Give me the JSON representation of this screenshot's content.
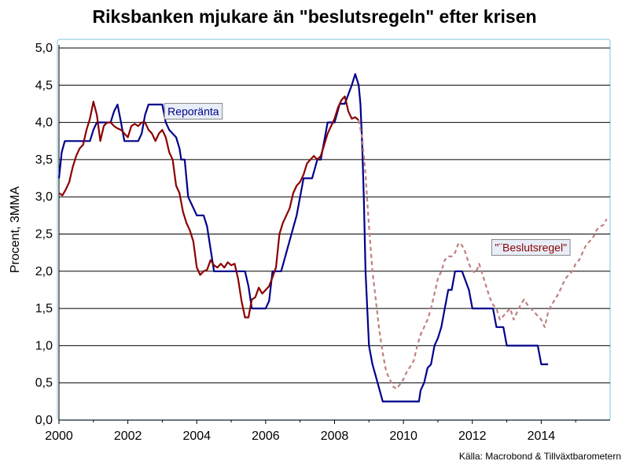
{
  "chart_data": {
    "type": "line",
    "title": "Riksbanken mjukare än \"beslutsregeln\" efter krisen",
    "ylabel": "Procent, 3MMA",
    "xlabel": "",
    "source": "Källa: Macrobond & Tillväxtbarometern",
    "xlim": [
      2000,
      2016
    ],
    "ylim": [
      0,
      5
    ],
    "grid": true,
    "x_ticks": [
      2000,
      2002,
      2004,
      2006,
      2008,
      2010,
      2012,
      2014
    ],
    "x_tick_labels": [
      "2000",
      "2002",
      "2004",
      "2006",
      "2008",
      "2010",
      "2012",
      "2014"
    ],
    "y_ticks": [
      0,
      0.5,
      1.0,
      1.5,
      2.0,
      2.5,
      3.0,
      3.5,
      4.0,
      4.5,
      5.0
    ],
    "y_tick_labels": [
      "0,0",
      "0,5",
      "1,0",
      "1,5",
      "2,0",
      "2,5",
      "3,0",
      "3,5",
      "4,0",
      "4,5",
      "5,0"
    ],
    "series": [
      {
        "name": "Reporänta",
        "color": "#00008B",
        "style": "solid",
        "x": [
          2000.0,
          2000.08,
          2000.17,
          2000.25,
          2000.5,
          2000.75,
          2000.9,
          2001.0,
          2001.1,
          2001.25,
          2001.5,
          2001.6,
          2001.7,
          2001.8,
          2001.9,
          2002.0,
          2002.3,
          2002.4,
          2002.5,
          2002.6,
          2002.9,
          2003.0,
          2003.1,
          2003.2,
          2003.4,
          2003.5,
          2003.55,
          2003.65,
          2003.75,
          2004.0,
          2004.1,
          2004.2,
          2004.3,
          2004.5,
          2005.0,
          2005.3,
          2005.4,
          2005.5,
          2005.6,
          2005.7,
          2006.0,
          2006.1,
          2006.2,
          2006.3,
          2006.45,
          2006.6,
          2006.75,
          2006.9,
          2007.0,
          2007.1,
          2007.2,
          2007.35,
          2007.5,
          2007.6,
          2007.8,
          2007.9,
          2008.0,
          2008.15,
          2008.3,
          2008.5,
          2008.6,
          2008.7,
          2008.75,
          2008.8,
          2008.85,
          2008.9,
          2009.0,
          2009.1,
          2009.25,
          2009.4,
          2009.5,
          2009.6,
          2009.7,
          2010.45,
          2010.5,
          2010.6,
          2010.7,
          2010.8,
          2010.9,
          2011.0,
          2011.1,
          2011.2,
          2011.3,
          2011.4,
          2011.5,
          2011.6,
          2011.7,
          2011.9,
          2012.0,
          2012.1,
          2012.2,
          2012.3,
          2012.5,
          2012.6,
          2012.7,
          2012.8,
          2012.9,
          2013.0,
          2013.9,
          2014.0,
          2014.1,
          2014.2
        ],
        "y": [
          3.25,
          3.6,
          3.75,
          3.75,
          3.75,
          3.75,
          3.75,
          3.9,
          4.0,
          4.0,
          4.0,
          4.15,
          4.24,
          4.0,
          3.75,
          3.75,
          3.75,
          3.85,
          4.1,
          4.24,
          4.24,
          4.24,
          4.0,
          3.9,
          3.8,
          3.65,
          3.5,
          3.5,
          3.0,
          2.75,
          2.75,
          2.75,
          2.6,
          2.0,
          2.0,
          2.0,
          2.0,
          1.8,
          1.5,
          1.5,
          1.5,
          1.6,
          2.0,
          2.0,
          2.0,
          2.25,
          2.5,
          2.75,
          3.0,
          3.25,
          3.25,
          3.25,
          3.5,
          3.5,
          4.0,
          4.0,
          4.0,
          4.25,
          4.25,
          4.5,
          4.65,
          4.5,
          4.25,
          3.75,
          3.0,
          2.0,
          1.0,
          0.75,
          0.5,
          0.25,
          0.25,
          0.25,
          0.25,
          0.25,
          0.4,
          0.5,
          0.7,
          0.75,
          1.0,
          1.1,
          1.25,
          1.5,
          1.75,
          1.75,
          2.0,
          2.0,
          2.0,
          1.75,
          1.5,
          1.5,
          1.5,
          1.5,
          1.5,
          1.5,
          1.25,
          1.25,
          1.25,
          1.0,
          1.0,
          0.75,
          0.75,
          0.75
        ]
      },
      {
        "name": "Beslutsregel",
        "color": "#8B0000",
        "style": "solid",
        "x": [
          2000.0,
          2000.1,
          2000.2,
          2000.3,
          2000.4,
          2000.5,
          2000.6,
          2000.7,
          2000.8,
          2000.9,
          2001.0,
          2001.1,
          2001.2,
          2001.3,
          2001.4,
          2001.5,
          2001.6,
          2001.7,
          2001.8,
          2001.9,
          2002.0,
          2002.1,
          2002.2,
          2002.3,
          2002.4,
          2002.5,
          2002.6,
          2002.7,
          2002.8,
          2002.9,
          2003.0,
          2003.1,
          2003.2,
          2003.3,
          2003.4,
          2003.5,
          2003.6,
          2003.7,
          2003.8,
          2003.9,
          2004.0,
          2004.1,
          2004.2,
          2004.3,
          2004.4,
          2004.5,
          2004.6,
          2004.7,
          2004.8,
          2004.9,
          2005.0,
          2005.1,
          2005.2,
          2005.3,
          2005.4,
          2005.5,
          2005.6,
          2005.7,
          2005.8,
          2005.9,
          2006.0,
          2006.1,
          2006.2,
          2006.3,
          2006.4,
          2006.5,
          2006.6,
          2006.7,
          2006.8,
          2006.9,
          2007.0,
          2007.1,
          2007.2,
          2007.3,
          2007.4,
          2007.5,
          2007.6,
          2007.7,
          2007.8,
          2007.9,
          2008.0,
          2008.1,
          2008.2,
          2008.3,
          2008.4,
          2008.5,
          2008.6,
          2008.7
        ],
        "y": [
          3.05,
          3.02,
          3.1,
          3.2,
          3.4,
          3.55,
          3.65,
          3.7,
          3.9,
          4.05,
          4.28,
          4.1,
          3.75,
          3.95,
          4.0,
          4.0,
          3.95,
          3.92,
          3.9,
          3.85,
          3.8,
          3.95,
          3.98,
          3.95,
          4.0,
          4.0,
          3.9,
          3.85,
          3.75,
          3.85,
          3.9,
          3.8,
          3.6,
          3.5,
          3.15,
          3.05,
          2.8,
          2.65,
          2.55,
          2.4,
          2.05,
          1.95,
          2.0,
          2.02,
          2.15,
          2.08,
          2.05,
          2.1,
          2.05,
          2.12,
          2.08,
          2.1,
          1.9,
          1.6,
          1.38,
          1.38,
          1.62,
          1.65,
          1.78,
          1.7,
          1.75,
          1.8,
          1.92,
          2.05,
          2.5,
          2.65,
          2.75,
          2.85,
          3.05,
          3.15,
          3.2,
          3.3,
          3.45,
          3.5,
          3.55,
          3.5,
          3.55,
          3.7,
          3.85,
          3.95,
          4.05,
          4.2,
          4.3,
          4.35,
          4.15,
          4.05,
          4.07,
          4.03
        ]
      },
      {
        "name": "Beslutsregel (prognos)",
        "color": "#C08080",
        "style": "dashed",
        "x": [
          2008.7,
          2008.8,
          2008.9,
          2009.0,
          2009.1,
          2009.2,
          2009.3,
          2009.4,
          2009.5,
          2009.6,
          2009.7,
          2009.8,
          2009.9,
          2010.0,
          2010.1,
          2010.2,
          2010.3,
          2010.4,
          2010.5,
          2010.6,
          2010.7,
          2010.8,
          2010.9,
          2011.0,
          2011.1,
          2011.2,
          2011.3,
          2011.4,
          2011.5,
          2011.6,
          2011.7,
          2011.8,
          2011.9,
          2012.0,
          2012.1,
          2012.2,
          2012.3,
          2012.4,
          2012.5,
          2012.6,
          2012.7,
          2012.8,
          2012.9,
          2013.0,
          2013.1,
          2013.2,
          2013.3,
          2013.4,
          2013.5,
          2013.6,
          2013.7,
          2013.8,
          2013.9,
          2014.0,
          2014.1,
          2014.2,
          2014.3,
          2014.4,
          2014.5,
          2014.6,
          2014.7,
          2014.8,
          2014.9,
          2015.0,
          2015.1,
          2015.2,
          2015.3,
          2015.4,
          2015.5,
          2015.6,
          2015.7,
          2015.8,
          2015.9
        ],
        "y": [
          4.03,
          3.8,
          3.3,
          2.6,
          2.0,
          1.6,
          1.2,
          0.9,
          0.65,
          0.55,
          0.45,
          0.42,
          0.48,
          0.55,
          0.65,
          0.72,
          0.8,
          1.0,
          1.15,
          1.25,
          1.35,
          1.5,
          1.7,
          1.9,
          2.0,
          2.15,
          2.2,
          2.2,
          2.25,
          2.38,
          2.35,
          2.25,
          2.1,
          2.0,
          1.98,
          2.1,
          1.95,
          1.8,
          1.65,
          1.55,
          1.5,
          1.35,
          1.4,
          1.45,
          1.5,
          1.35,
          1.45,
          1.55,
          1.62,
          1.55,
          1.5,
          1.45,
          1.4,
          1.35,
          1.25,
          1.45,
          1.55,
          1.62,
          1.7,
          1.8,
          1.9,
          1.95,
          2.0,
          2.1,
          2.15,
          2.25,
          2.35,
          2.4,
          2.45,
          2.55,
          2.6,
          2.62,
          2.7
        ]
      }
    ],
    "annotations": [
      {
        "text": "Reporänta",
        "color": "#00008B",
        "x": 2003.9,
        "y": 4.15,
        "box": true
      },
      {
        "text": "\"¨Beslutsregel\"",
        "color": "#8B0000",
        "x": 2013.7,
        "y": 2.32,
        "box": true
      }
    ]
  }
}
